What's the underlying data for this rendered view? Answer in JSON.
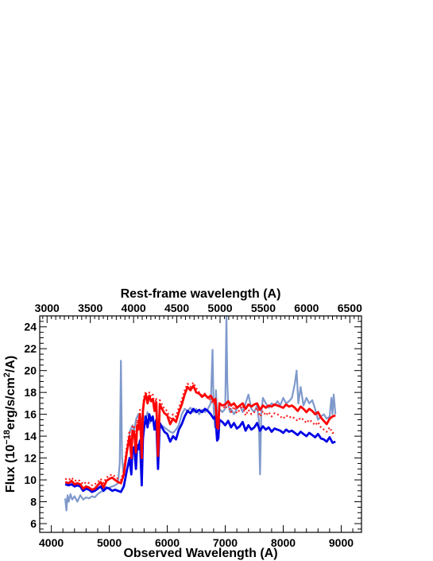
{
  "chart_data": {
    "type": "line",
    "title": "",
    "xlabel": "Observed Wavelength (A)",
    "x2label": "Rest-frame wavelength (A)",
    "ylabel_main": "Flux (10",
    "ylabel_exp1": "−18",
    "ylabel_mid": "erg/s/cm",
    "ylabel_exp2": "2",
    "ylabel_end": "/A)",
    "xlim": [
      3800,
      9350
    ],
    "ylim": [
      5.2,
      25.0
    ],
    "x2lim": [
      2915,
      6635
    ],
    "xticks": [
      4000,
      5000,
      6000,
      7000,
      8000,
      9000
    ],
    "x2ticks": [
      3000,
      3500,
      4000,
      4500,
      5000,
      5500,
      6000,
      6500
    ],
    "yticks": [
      6,
      8,
      10,
      12,
      14,
      16,
      18,
      20,
      22,
      24
    ],
    "grid": false,
    "series": [
      {
        "style": "observed-spectrum",
        "color": "#7f99cc",
        "x": [
          4240,
          4260,
          4280,
          4300,
          4330,
          4360,
          4400,
          4450,
          4500,
          4550,
          4600,
          4650,
          4700,
          4750,
          4800,
          4850,
          4900,
          4950,
          5000,
          5050,
          5100,
          5150,
          5180,
          5200,
          5220,
          5240,
          5260,
          5300,
          5330,
          5360,
          5400,
          5430,
          5460,
          5500,
          5540,
          5580,
          5620,
          5660,
          5700,
          5740,
          5780,
          5820,
          5860,
          5900,
          5950,
          6000,
          6050,
          6100,
          6150,
          6200,
          6250,
          6300,
          6350,
          6400,
          6450,
          6500,
          6550,
          6600,
          6650,
          6700,
          6750,
          6780,
          6800,
          6820,
          6840,
          6860,
          6880,
          6900,
          6950,
          7000,
          7020,
          7035,
          7050,
          7080,
          7100,
          7150,
          7200,
          7250,
          7300,
          7350,
          7400,
          7450,
          7500,
          7550,
          7580,
          7600,
          7620,
          7650,
          7700,
          7750,
          7800,
          7850,
          7900,
          7950,
          8000,
          8050,
          8100,
          8150,
          8200,
          8230,
          8260,
          8300,
          8350,
          8400,
          8450,
          8500,
          8550,
          8600,
          8650,
          8700,
          8750,
          8800,
          8830,
          8850,
          8870,
          8900
        ],
        "y": [
          8.3,
          7.2,
          8.6,
          8.0,
          8.7,
          8.2,
          8.5,
          8.0,
          8.6,
          8.2,
          8.4,
          8.3,
          8.5,
          8.4,
          8.7,
          8.9,
          9.0,
          9.2,
          9.3,
          9.4,
          9.5,
          9.7,
          11.5,
          20.9,
          12.0,
          10.8,
          11.2,
          12.5,
          13.5,
          14.5,
          15.0,
          14.5,
          15.5,
          16.0,
          14.8,
          16.0,
          15.5,
          16.2,
          15.2,
          15.8,
          15.0,
          15.3,
          14.5,
          15.0,
          14.8,
          14.6,
          14.4,
          14.3,
          14.6,
          15.0,
          16.0,
          16.5,
          16.3,
          16.6,
          16.2,
          16.5,
          16.0,
          16.4,
          16.2,
          16.5,
          17.0,
          21.9,
          16.5,
          14.8,
          18.2,
          16.0,
          15.5,
          16.5,
          16.2,
          16.5,
          25.0,
          19.0,
          17.0,
          16.2,
          16.5,
          16.0,
          16.5,
          16.8,
          16.2,
          17.0,
          17.8,
          16.5,
          16.2,
          16.8,
          15.5,
          10.5,
          16.0,
          17.5,
          17.0,
          16.6,
          17.0,
          16.8,
          17.2,
          16.8,
          17.5,
          17.0,
          17.2,
          17.5,
          18.8,
          20.0,
          17.0,
          18.5,
          16.8,
          17.5,
          17.0,
          17.3,
          16.5,
          15.5,
          15.8,
          16.0,
          15.6,
          15.8,
          17.5,
          16.0,
          17.8,
          16.0
        ]
      },
      {
        "style": "model-blue",
        "color": "#0000e6",
        "x": [
          4240,
          4300,
          4350,
          4400,
          4450,
          4500,
          4550,
          4600,
          4650,
          4700,
          4750,
          4800,
          4850,
          4900,
          4950,
          5000,
          5050,
          5100,
          5150,
          5200,
          5250,
          5300,
          5350,
          5380,
          5400,
          5430,
          5460,
          5480,
          5500,
          5530,
          5560,
          5580,
          5600,
          5630,
          5660,
          5690,
          5720,
          5750,
          5780,
          5810,
          5840,
          5870,
          5900,
          5950,
          6000,
          6050,
          6100,
          6150,
          6200,
          6250,
          6300,
          6350,
          6400,
          6450,
          6500,
          6550,
          6600,
          6650,
          6700,
          6750,
          6800,
          6830,
          6860,
          6880,
          6900,
          6950,
          7000,
          7050,
          7100,
          7150,
          7200,
          7250,
          7300,
          7350,
          7400,
          7450,
          7500,
          7550,
          7600,
          7650,
          7700,
          7750,
          7800,
          7850,
          7900,
          7950,
          8000,
          8050,
          8100,
          8150,
          8200,
          8250,
          8300,
          8350,
          8400,
          8450,
          8500,
          8550,
          8600,
          8650,
          8700,
          8750,
          8800,
          8850,
          8900
        ],
        "y": [
          9.6,
          9.5,
          9.6,
          9.4,
          9.5,
          9.4,
          9.0,
          9.2,
          9.1,
          8.9,
          9.0,
          9.2,
          9.4,
          9.0,
          9.3,
          9.2,
          9.0,
          9.1,
          9.0,
          8.9,
          9.4,
          10.8,
          12.0,
          10.5,
          12.8,
          13.0,
          11.0,
          13.2,
          12.8,
          13.6,
          9.5,
          13.8,
          14.8,
          15.8,
          14.8,
          16.0,
          15.4,
          15.8,
          14.6,
          15.5,
          11.0,
          15.2,
          14.9,
          14.4,
          14.2,
          13.5,
          14.0,
          13.7,
          14.6,
          15.1,
          15.8,
          16.3,
          16.1,
          16.5,
          16.2,
          16.4,
          16.2,
          16.5,
          16.3,
          16.0,
          15.6,
          15.8,
          13.6,
          13.8,
          15.5,
          15.3,
          15.0,
          15.4,
          14.8,
          15.2,
          14.7,
          14.9,
          15.3,
          14.5,
          15.0,
          14.6,
          14.8,
          15.2,
          14.5,
          14.9,
          14.6,
          14.8,
          14.4,
          14.7,
          14.6,
          14.5,
          14.3,
          14.6,
          14.4,
          14.5,
          14.3,
          14.1,
          14.4,
          14.2,
          14.0,
          14.3,
          14.1,
          13.9,
          14.2,
          13.8,
          13.7,
          13.5,
          13.9,
          13.4,
          13.5
        ]
      },
      {
        "style": "model-red-dotted",
        "color": "#ff2020",
        "x": [
          4240,
          4300,
          4350,
          4400,
          4450,
          4500,
          4550,
          4600,
          4650,
          4700,
          4750,
          4800,
          4850,
          4900,
          4950,
          5000,
          5050,
          5100,
          5150,
          5200,
          5250,
          5300,
          5350,
          5380,
          5400,
          5430,
          5460,
          5480,
          5500,
          5530,
          5560,
          5580,
          5600,
          5630,
          5660,
          5690,
          5720,
          5750,
          5780,
          5810,
          5840,
          5870,
          5900,
          5950,
          6000,
          6050,
          6100,
          6150,
          6200,
          6250,
          6300,
          6350,
          6400,
          6450,
          6500,
          6550,
          6600,
          6650,
          6700,
          6750,
          6800,
          6830,
          6860,
          6880,
          6900,
          6950,
          7000,
          7050,
          7100,
          7150,
          7200,
          7250,
          7300,
          7350,
          7400,
          7450,
          7500,
          7550,
          7600,
          7650,
          7700,
          7750,
          7800,
          7850,
          7900,
          7950,
          8000,
          8050,
          8100,
          8150,
          8200,
          8250,
          8300,
          8350,
          8400,
          8450,
          8500,
          8550,
          8600,
          8650,
          8700,
          8750,
          8800,
          8850,
          8900
        ],
        "y": [
          10.1,
          10.0,
          10.2,
          9.9,
          10.0,
          9.9,
          9.6,
          9.8,
          9.7,
          9.5,
          9.6,
          9.8,
          10.1,
          9.7,
          10.2,
          10.4,
          10.5,
          10.3,
          10.1,
          10.0,
          10.8,
          13.0,
          14.5,
          12.8,
          15.0,
          14.8,
          13.2,
          15.5,
          15.2,
          16.4,
          13.0,
          16.6,
          17.6,
          18.1,
          17.4,
          18.0,
          17.6,
          17.8,
          16.8,
          17.5,
          13.0,
          17.3,
          17.0,
          16.5,
          16.3,
          15.5,
          16.0,
          15.8,
          16.6,
          17.3,
          18.2,
          18.8,
          18.5,
          18.9,
          18.4,
          18.0,
          17.7,
          17.9,
          17.5,
          17.3,
          16.9,
          17.1,
          14.8,
          15.2,
          16.9,
          16.8,
          16.5,
          16.9,
          16.2,
          16.7,
          16.1,
          16.4,
          16.8,
          15.9,
          16.4,
          16.0,
          16.2,
          16.6,
          15.8,
          16.3,
          15.9,
          16.2,
          15.8,
          16.1,
          16.0,
          15.8,
          15.6,
          15.9,
          15.7,
          15.8,
          15.6,
          15.4,
          15.7,
          15.5,
          15.2,
          15.5,
          15.3,
          15.0,
          15.3,
          14.8,
          14.6,
          14.4,
          14.8,
          14.3,
          14.3
        ]
      },
      {
        "style": "model-red",
        "color": "#ff0000",
        "x": [
          4240,
          4300,
          4350,
          4400,
          4450,
          4500,
          4550,
          4600,
          4650,
          4700,
          4750,
          4800,
          4850,
          4900,
          4950,
          5000,
          5050,
          5100,
          5150,
          5200,
          5250,
          5300,
          5350,
          5380,
          5400,
          5430,
          5460,
          5480,
          5500,
          5530,
          5560,
          5580,
          5600,
          5630,
          5660,
          5690,
          5720,
          5750,
          5780,
          5810,
          5840,
          5870,
          5900,
          5950,
          6000,
          6050,
          6100,
          6150,
          6200,
          6250,
          6300,
          6350,
          6400,
          6450,
          6500,
          6550,
          6600,
          6650,
          6700,
          6750,
          6800,
          6830,
          6860,
          6880,
          6900,
          6950,
          7000,
          7050,
          7100,
          7150,
          7200,
          7250,
          7300,
          7350,
          7400,
          7450,
          7500,
          7550,
          7600,
          7650,
          7700,
          7750,
          7800,
          7850,
          7900,
          7950,
          8000,
          8050,
          8100,
          8150,
          8200,
          8250,
          8300,
          8350,
          8400,
          8450,
          8500,
          8550,
          8600,
          8650,
          8700,
          8750,
          8800,
          8850,
          8900
        ],
        "y": [
          9.8,
          9.7,
          9.9,
          9.6,
          9.7,
          9.6,
          9.2,
          9.4,
          9.3,
          9.1,
          9.2,
          9.5,
          9.8,
          9.3,
          9.9,
          10.1,
          10.2,
          10.0,
          9.8,
          9.7,
          10.5,
          12.5,
          14.0,
          12.0,
          14.5,
          14.3,
          12.5,
          15.0,
          14.6,
          16.0,
          12.0,
          16.3,
          17.3,
          17.8,
          17.0,
          17.7,
          17.2,
          17.4,
          16.3,
          17.1,
          12.2,
          16.9,
          16.6,
          16.1,
          15.9,
          15.1,
          15.6,
          15.3,
          16.2,
          16.9,
          17.8,
          18.5,
          18.2,
          18.6,
          18.0,
          17.9,
          17.6,
          17.8,
          17.5,
          17.7,
          17.2,
          17.4,
          14.8,
          14.7,
          17.0,
          16.8,
          16.9,
          17.2,
          16.8,
          17.0,
          16.6,
          16.8,
          17.0,
          16.5,
          16.9,
          16.7,
          16.9,
          17.0,
          16.4,
          16.8,
          16.6,
          16.8,
          16.7,
          16.9,
          16.8,
          16.7,
          16.6,
          16.9,
          16.7,
          16.8,
          16.6,
          16.3,
          16.7,
          16.5,
          16.2,
          16.5,
          16.3,
          16.0,
          16.2,
          15.7,
          15.4,
          15.1,
          15.6,
          15.8,
          15.9
        ]
      }
    ]
  }
}
